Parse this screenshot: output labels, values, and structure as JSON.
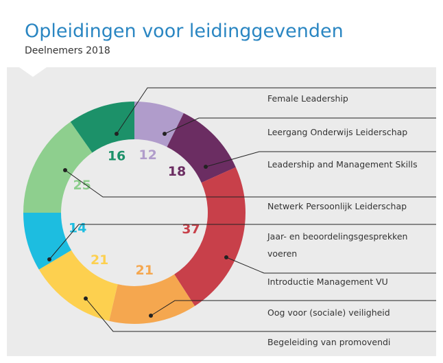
{
  "chart_data": {
    "type": "pie",
    "title": "Opleidingen voor leidinggevenden",
    "subtitle": "Deelnemers 2018",
    "categories": [
      "Leergang Onderwijs Leiderschap",
      "Leadership and Management Skills",
      "Introductie Management VU",
      "Oog voor (sociale) veiligheid",
      "Begeleiding van promovendi",
      "Jaar- en beoordelingsgesprekken voeren",
      "Netwerk Persoonlijk Leiderschap",
      "Female Leadership"
    ],
    "values": [
      12,
      18,
      37,
      21,
      21,
      14,
      25,
      16
    ],
    "colors": [
      "#b09ccb",
      "#6b2d62",
      "#c8404a",
      "#f5a74f",
      "#fdd04f",
      "#1dbde0",
      "#8ecf8e",
      "#1c9169"
    ]
  }
}
